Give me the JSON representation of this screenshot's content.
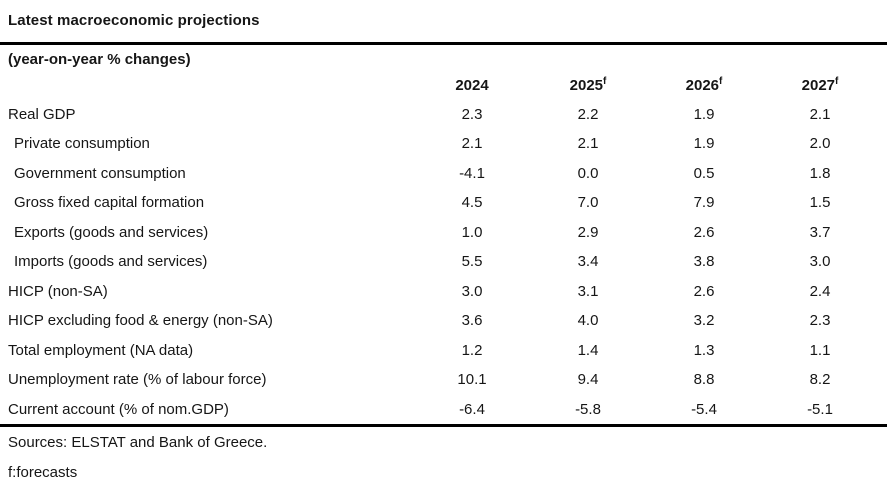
{
  "chart_data": {
    "type": "table",
    "title": "Latest macroeconomic projections",
    "unit_note": "(year-on-year % changes)",
    "columns": [
      {
        "label": "2024",
        "sup": ""
      },
      {
        "label": "2025",
        "sup": "f"
      },
      {
        "label": "2026",
        "sup": "f"
      },
      {
        "label": "2027",
        "sup": "f"
      }
    ],
    "rows": [
      {
        "label": "Real GDP",
        "indent": false,
        "values": [
          "2.3",
          "2.2",
          "1.9",
          "2.1"
        ]
      },
      {
        "label": "Private consumption",
        "indent": true,
        "values": [
          "2.1",
          "2.1",
          "1.9",
          "2.0"
        ]
      },
      {
        "label": "Government consumption",
        "indent": true,
        "values": [
          "-4.1",
          "0.0",
          "0.5",
          "1.8"
        ]
      },
      {
        "label": "Gross fixed capital formation",
        "indent": true,
        "values": [
          "4.5",
          "7.0",
          "7.9",
          "1.5"
        ]
      },
      {
        "label": "Exports (goods and services)",
        "indent": true,
        "values": [
          "1.0",
          "2.9",
          "2.6",
          "3.7"
        ]
      },
      {
        "label": "Imports (goods and services)",
        "indent": true,
        "values": [
          "5.5",
          "3.4",
          "3.8",
          "3.0"
        ]
      },
      {
        "label": "HICP (non-SA)",
        "indent": false,
        "values": [
          "3.0",
          "3.1",
          "2.6",
          "2.4"
        ]
      },
      {
        "label": "HICP excluding food & energy (non-SA)",
        "indent": false,
        "values": [
          "3.6",
          "4.0",
          "3.2",
          "2.3"
        ]
      },
      {
        "label": "Total employment (NA data)",
        "indent": false,
        "values": [
          "1.2",
          "1.4",
          "1.3",
          "1.1"
        ]
      },
      {
        "label": "Unemployment rate (% of labour force)",
        "indent": false,
        "values": [
          "10.1",
          "9.4",
          "8.8",
          "8.2"
        ]
      },
      {
        "label": "Current account (% of nom.GDP)",
        "indent": false,
        "values": [
          "-6.4",
          "-5.8",
          "-5.4",
          "-5.1"
        ]
      }
    ],
    "sources": "Sources: ELSTAT and Bank of Greece.",
    "forecast_note": "f:forecasts",
    "colors": {
      "text": "#161616",
      "rule": "#000000",
      "background": "#ffffff"
    }
  }
}
